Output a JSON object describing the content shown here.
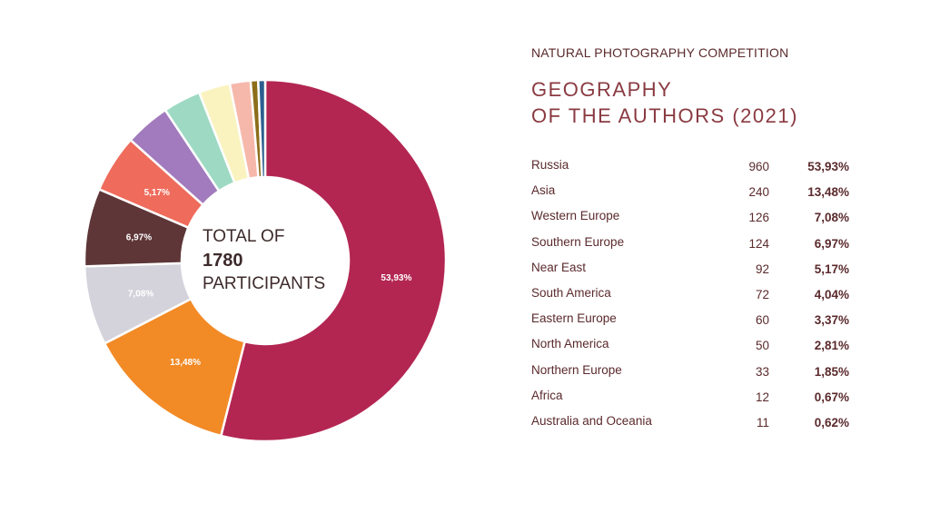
{
  "header": {
    "subtitle": "NATURAL PHOTOGRAPHY COMPETITION",
    "title_line1": "GEOGRAPHY",
    "title_line2": "OF THE AUTHORS (2021)"
  },
  "center": {
    "line1": "TOTAL OF",
    "line2": "1780",
    "line3": "PARTICIPANTS"
  },
  "chart_data": {
    "type": "pie",
    "total": 1780,
    "categories": [
      "Russia",
      "Asia",
      "Western Europe",
      "Southern Europe",
      "Near East",
      "South America",
      "Eastern Europe",
      "North America",
      "Northern Europe",
      "Africa",
      "Australia and Oceania"
    ],
    "values": [
      960,
      240,
      126,
      124,
      92,
      72,
      60,
      50,
      33,
      12,
      11
    ],
    "percent_labels": [
      "53,93%",
      "13,48%",
      "7,08%",
      "6,97%",
      "5,17%",
      "4,04%",
      "3,37%",
      "2,81%",
      "1,85%",
      "0,67%",
      "0,62%"
    ],
    "slice_labels": [
      "53,93%",
      "13,48%",
      "7,08%",
      "6,97%",
      "5,17%",
      "",
      "",
      "",
      "",
      "",
      ""
    ],
    "colors": [
      "#b32652",
      "#f28a26",
      "#d4d3dc",
      "#5e3638",
      "#ef6b5b",
      "#a17bbd",
      "#9ed9c4",
      "#faf3bf",
      "#f6b8ab",
      "#8c6d1a",
      "#2c5f8f"
    ]
  }
}
